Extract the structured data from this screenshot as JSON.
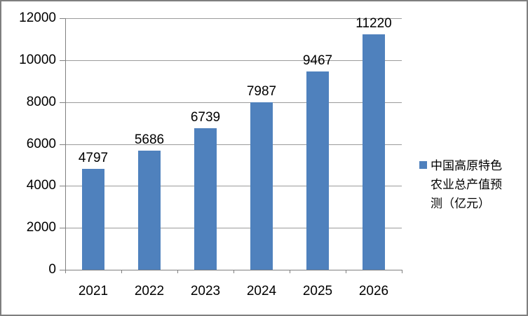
{
  "chart_data": {
    "type": "bar",
    "categories": [
      "2021",
      "2022",
      "2023",
      "2024",
      "2025",
      "2026"
    ],
    "values": [
      4797,
      5686,
      6739,
      7987,
      9467,
      11220
    ],
    "series_name": "中国高原特色农业总产值预测（亿元）",
    "legend_lines": [
      "中国高原特色",
      "农业总产值预",
      "测（亿元）"
    ],
    "legend_position": "right",
    "data_labels": true,
    "grid": true,
    "ylim": [
      0,
      12000
    ],
    "ytick_step": 2000,
    "yticks": [
      0,
      2000,
      4000,
      6000,
      8000,
      10000,
      12000
    ],
    "colors": {
      "bar": "#4F81BD",
      "gridline": "#9B9B9B",
      "axis": "#808080",
      "text": "#000000",
      "background": "#FFFFFF",
      "border": "#7F7F7F"
    }
  }
}
